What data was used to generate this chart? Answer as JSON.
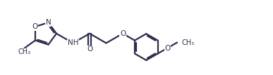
{
  "bg_color": "#ffffff",
  "line_color": "#2d2d4e",
  "line_width": 1.6,
  "fig_width": 3.87,
  "fig_height": 1.07,
  "dpi": 100,
  "xlim": [
    0,
    10.0
  ],
  "ylim": [
    0.0,
    2.8
  ]
}
